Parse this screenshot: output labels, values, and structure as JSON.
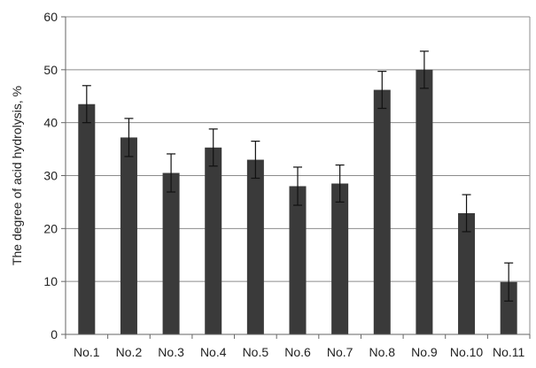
{
  "chart_data": {
    "type": "bar",
    "title": "",
    "xlabel": "",
    "ylabel": "The degree of acid hydrolysis, %",
    "categories": [
      "No.1",
      "No.2",
      "No.3",
      "No.4",
      "No.5",
      "No.6",
      "No.7",
      "No.8",
      "No.9",
      "No.10",
      "No.11"
    ],
    "values": [
      43.5,
      37.2,
      30.5,
      35.3,
      33.0,
      28.0,
      28.5,
      46.2,
      50.0,
      22.9,
      9.9
    ],
    "error": [
      3.5,
      3.6,
      3.6,
      3.5,
      3.5,
      3.6,
      3.5,
      3.5,
      3.5,
      3.5,
      3.6
    ],
    "ylim": [
      0,
      60
    ],
    "yticks": [
      "0",
      "10",
      "20",
      "30",
      "40",
      "50",
      "60"
    ],
    "grid": true,
    "bar_color": "#3a3a3a",
    "grid_color": "#8c8c8c",
    "axis_color": "#666666"
  }
}
